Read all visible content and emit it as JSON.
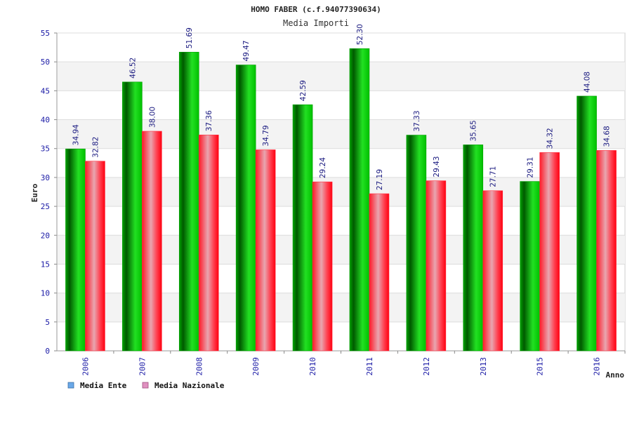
{
  "chart_data": {
    "type": "bar",
    "title": "HOMO FABER (c.f.94077390634)",
    "subtitle": "Media Importi",
    "xlabel": "Anno",
    "ylabel": "Euro",
    "ylim": [
      0,
      55
    ],
    "yticks": [
      0,
      5,
      10,
      15,
      20,
      25,
      30,
      35,
      40,
      45,
      50,
      55
    ],
    "categories": [
      "2006",
      "2007",
      "2008",
      "2009",
      "2010",
      "2011",
      "2012",
      "2013",
      "2015",
      "2016"
    ],
    "series": [
      {
        "name": "Media Ente",
        "color": "#00c000",
        "legend_color": "#6aa8e8",
        "values": [
          34.94,
          46.52,
          51.69,
          49.47,
          42.59,
          52.3,
          37.33,
          35.65,
          29.31,
          44.08
        ],
        "labels": [
          "34.94",
          "46.52",
          "51.69",
          "49.47",
          "42.59",
          "52.30",
          "37.33",
          "35.65",
          "29.31",
          "44.08"
        ]
      },
      {
        "name": "Media Nazionale",
        "color": "#ff1020",
        "legend_color": "#e090c0",
        "values": [
          32.82,
          38.0,
          37.36,
          34.79,
          29.24,
          27.19,
          29.43,
          27.71,
          34.32,
          34.68
        ],
        "labels": [
          "32.82",
          "38.00",
          "37.36",
          "34.79",
          "29.24",
          "27.19",
          "29.43",
          "27.71",
          "34.32",
          "34.68"
        ]
      }
    ],
    "grid": true,
    "legend": "bottom-left"
  }
}
